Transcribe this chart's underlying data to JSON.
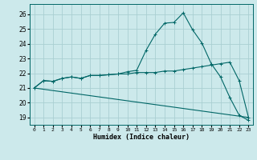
{
  "title": "",
  "xlabel": "Humidex (Indice chaleur)",
  "background_color": "#cce9eb",
  "grid_color": "#aacfd2",
  "line_color": "#006666",
  "xlim": [
    -0.5,
    23.5
  ],
  "ylim": [
    18.5,
    26.7
  ],
  "xticks": [
    0,
    1,
    2,
    3,
    4,
    5,
    6,
    7,
    8,
    9,
    10,
    11,
    12,
    13,
    14,
    15,
    16,
    17,
    18,
    19,
    20,
    21,
    22,
    23
  ],
  "yticks": [
    19,
    20,
    21,
    22,
    23,
    24,
    25,
    26
  ],
  "line1_x": [
    0,
    1,
    2,
    3,
    4,
    5,
    6,
    7,
    8,
    9,
    10,
    11,
    12,
    13,
    14,
    15,
    16,
    17,
    18,
    19,
    20,
    21,
    22,
    23
  ],
  "line1_y": [
    21.0,
    21.5,
    21.45,
    21.65,
    21.75,
    21.65,
    21.85,
    21.85,
    21.9,
    21.95,
    21.95,
    22.05,
    22.05,
    22.05,
    22.15,
    22.15,
    22.25,
    22.35,
    22.45,
    22.55,
    22.65,
    22.75,
    21.5,
    19.0
  ],
  "line2_x": [
    0,
    1,
    2,
    3,
    4,
    5,
    6,
    7,
    8,
    9,
    10,
    11,
    12,
    13,
    14,
    15,
    16,
    17,
    18,
    19,
    20,
    21,
    22,
    23
  ],
  "line2_y": [
    21.0,
    21.5,
    21.45,
    21.65,
    21.75,
    21.65,
    21.85,
    21.85,
    21.9,
    21.95,
    22.1,
    22.2,
    23.55,
    24.65,
    25.4,
    25.45,
    26.1,
    24.95,
    24.05,
    22.65,
    21.75,
    20.35,
    19.15,
    18.8
  ],
  "line3_x": [
    0,
    23
  ],
  "line3_y": [
    21.0,
    19.0
  ]
}
